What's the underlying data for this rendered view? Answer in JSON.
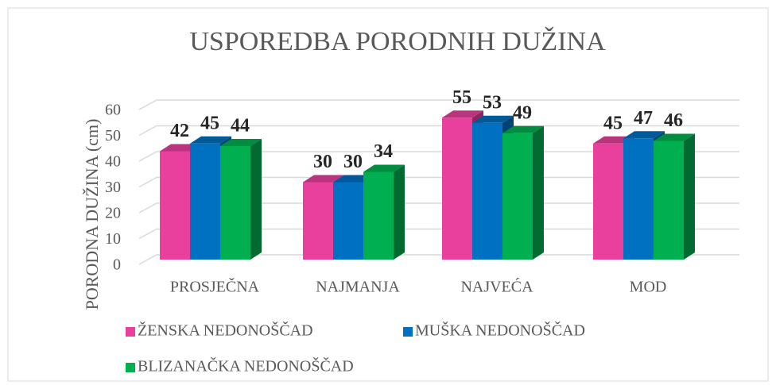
{
  "chart_data": {
    "type": "bar3d",
    "title": "USPOREDBA PORODNIH DUŽINA",
    "y_label": "PORODNA DUŽINA (cm)",
    "categories": [
      "PROSJEČNA",
      "NAJMANJA",
      "NAJVEĆA",
      "MOD"
    ],
    "series": [
      {
        "name": "ŽENSKA NEDONOŠČAD",
        "color": "#e8409c",
        "values": [
          42,
          30,
          55,
          45
        ]
      },
      {
        "name": "MUŠKA NEDONOŠČAD",
        "color": "#0070c0",
        "values": [
          45,
          30,
          53,
          47
        ]
      },
      {
        "name": "BLIZANAČKA NEDONOŠČAD",
        "color": "#00b050",
        "values": [
          44,
          34,
          49,
          46
        ]
      }
    ],
    "ylim": [
      0,
      60
    ],
    "yticks": [
      0,
      10,
      20,
      30,
      40,
      50,
      60
    ],
    "grid": true,
    "legend": "bottom"
  }
}
